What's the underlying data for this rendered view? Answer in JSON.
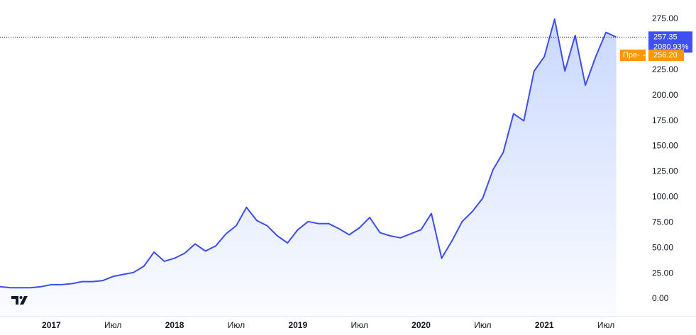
{
  "chart_data": {
    "type": "area",
    "x": [
      "2016-08",
      "2016-09",
      "2016-10",
      "2016-11",
      "2016-12",
      "2017-01",
      "2017-02",
      "2017-03",
      "2017-04",
      "2017-05",
      "2017-06",
      "2017-07",
      "2017-08",
      "2017-09",
      "2017-10",
      "2017-11",
      "2017-12",
      "2018-01",
      "2018-02",
      "2018-03",
      "2018-04",
      "2018-05",
      "2018-06",
      "2018-07",
      "2018-08",
      "2018-09",
      "2018-10",
      "2018-11",
      "2018-12",
      "2019-01",
      "2019-02",
      "2019-03",
      "2019-04",
      "2019-05",
      "2019-06",
      "2019-07",
      "2019-08",
      "2019-09",
      "2019-10",
      "2019-11",
      "2019-12",
      "2020-01",
      "2020-02",
      "2020-03",
      "2020-04",
      "2020-05",
      "2020-06",
      "2020-07",
      "2020-08",
      "2020-09",
      "2020-10",
      "2020-11",
      "2020-12",
      "2021-01",
      "2021-02",
      "2021-03",
      "2021-04",
      "2021-05",
      "2021-06",
      "2021-07",
      "2021-08"
    ],
    "values": [
      12,
      11,
      11,
      11,
      12,
      14,
      14,
      15,
      17,
      17,
      18,
      22,
      24,
      26,
      32,
      46,
      37,
      40,
      45,
      54,
      47,
      52,
      64,
      72,
      90,
      77,
      72,
      62,
      55,
      68,
      76,
      74,
      74,
      69,
      63,
      70,
      80,
      65,
      62,
      60,
      64,
      68,
      84,
      40,
      57,
      76,
      86,
      99,
      127,
      144,
      182,
      175,
      224,
      238,
      275,
      224,
      259,
      210,
      238,
      262,
      257.35
    ],
    "color": "#3d4de8",
    "xlim": [
      "2016-08",
      "2021-11"
    ],
    "xticks": [
      {
        "value": "2017-01",
        "label": "2017"
      },
      {
        "value": "2017-07",
        "label": "Июл"
      },
      {
        "value": "2018-01",
        "label": "2018"
      },
      {
        "value": "2018-07",
        "label": "Июл"
      },
      {
        "value": "2019-01",
        "label": "2019"
      },
      {
        "value": "2019-07",
        "label": "Июл"
      },
      {
        "value": "2020-01",
        "label": "2020"
      },
      {
        "value": "2020-07",
        "label": "Июл"
      },
      {
        "value": "2021-01",
        "label": "2021"
      },
      {
        "value": "2021-07",
        "label": "Июл"
      }
    ],
    "ylim": [
      -17.4,
      293.8
    ],
    "yticks": [
      {
        "value": 0,
        "label": "0.00"
      },
      {
        "value": 25,
        "label": "25.00"
      },
      {
        "value": 50,
        "label": "50.00"
      },
      {
        "value": 75,
        "label": "75.00"
      },
      {
        "value": 100,
        "label": "100.00"
      },
      {
        "value": 125,
        "label": "125.00"
      },
      {
        "value": 150,
        "label": "150.00"
      },
      {
        "value": 175,
        "label": "175.00"
      },
      {
        "value": 200,
        "label": "200.00"
      },
      {
        "value": 225,
        "label": "225.00"
      },
      {
        "value": 250,
        "label": "250.00"
      },
      {
        "value": 275,
        "label": "275.00"
      }
    ],
    "grid": false,
    "last_price": 257.35,
    "last_price_color": "#3f51f5",
    "last_change": {
      "value": 2080.93,
      "label": "2080.93%"
    },
    "premarket": {
      "label": "Пре-",
      "price": {
        "value": 256.2,
        "label": "256.20"
      },
      "color": "#ff9800"
    }
  }
}
